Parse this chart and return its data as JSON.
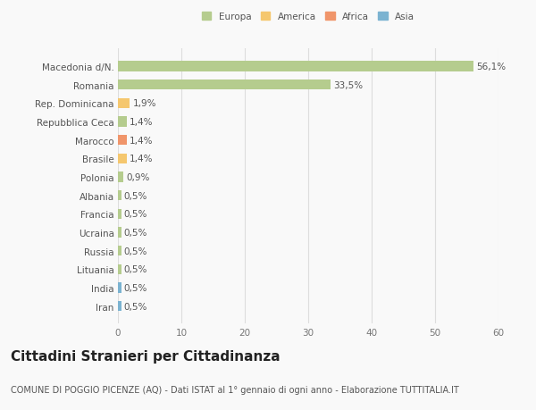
{
  "categories": [
    "Iran",
    "India",
    "Lituania",
    "Russia",
    "Ucraina",
    "Francia",
    "Albania",
    "Polonia",
    "Brasile",
    "Marocco",
    "Repubblica Ceca",
    "Rep. Dominicana",
    "Romania",
    "Macedonia d/N."
  ],
  "values": [
    0.5,
    0.5,
    0.5,
    0.5,
    0.5,
    0.5,
    0.5,
    0.9,
    1.4,
    1.4,
    1.4,
    1.9,
    33.5,
    56.1
  ],
  "bar_colors": [
    "#7bb3d1",
    "#7bb3d1",
    "#b5cc8e",
    "#b5cc8e",
    "#b5cc8e",
    "#b5cc8e",
    "#b5cc8e",
    "#b5cc8e",
    "#f5c76e",
    "#f0956a",
    "#b5cc8e",
    "#f5c76e",
    "#b5cc8e",
    "#b5cc8e"
  ],
  "labels": [
    "0,5%",
    "0,5%",
    "0,5%",
    "0,5%",
    "0,5%",
    "0,5%",
    "0,5%",
    "0,9%",
    "1,4%",
    "1,4%",
    "1,4%",
    "1,9%",
    "33,5%",
    "56,1%"
  ],
  "legend_labels": [
    "Europa",
    "America",
    "Africa",
    "Asia"
  ],
  "legend_colors": [
    "#b5cc8e",
    "#f5c76e",
    "#f0956a",
    "#7bb3d1"
  ],
  "title": "Cittadini Stranieri per Cittadinanza",
  "subtitle": "COMUNE DI POGGIO PICENZE (AQ) - Dati ISTAT al 1° gennaio di ogni anno - Elaborazione TUTTITALIA.IT",
  "xlim": [
    0,
    60
  ],
  "xticks": [
    0,
    10,
    20,
    30,
    40,
    50,
    60
  ],
  "background_color": "#f9f9f9",
  "grid_color": "#dddddd",
  "bar_height": 0.55,
  "label_fontsize": 7.5,
  "tick_fontsize": 7.5,
  "title_fontsize": 11,
  "subtitle_fontsize": 7
}
